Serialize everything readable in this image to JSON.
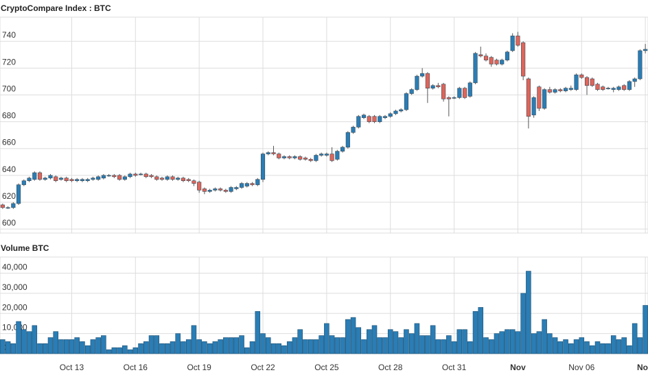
{
  "chart_data": [
    {
      "type": "candlestick",
      "title": "CryptoCompare Index : BTC",
      "up_color": "#2a7db5",
      "down_color": "#e0655a",
      "ylim": [
        597,
        758
      ],
      "yticks": [
        600,
        620,
        640,
        660,
        680,
        700,
        720,
        740
      ],
      "grid": true,
      "open": [
        618,
        616,
        616,
        619,
        633,
        636,
        637,
        642,
        637,
        638,
        639,
        637,
        638,
        637,
        636,
        636,
        636,
        637,
        637,
        638,
        640,
        640,
        640,
        637,
        639,
        641,
        641,
        641,
        640,
        639,
        638,
        637,
        639,
        637,
        638,
        637,
        636,
        635,
        630,
        628,
        629,
        630,
        629,
        628,
        630,
        631,
        632,
        634,
        633,
        637,
        656,
        657,
        656,
        653,
        654,
        653,
        654,
        653,
        652,
        651,
        655,
        655,
        656,
        652,
        658,
        661,
        672,
        676,
        683,
        684,
        684,
        680,
        683,
        684,
        686,
        688,
        689,
        701,
        704,
        714,
        716,
        705,
        707,
        708,
        698,
        698,
        698,
        705,
        699,
        709,
        730,
        729,
        728,
        726,
        723,
        726,
        733,
        744,
        739,
        712,
        685,
        706,
        690,
        704,
        702,
        704,
        703,
        704,
        704,
        715,
        713,
        712,
        708,
        706,
        705,
        704,
        704,
        707,
        704,
        710,
        712,
        733
      ],
      "high": [
        619,
        617,
        620,
        634,
        637,
        639,
        643,
        643,
        639,
        641,
        640,
        639,
        639,
        638,
        638,
        638,
        638,
        639,
        640,
        641,
        641,
        641,
        641,
        640,
        642,
        642,
        642,
        642,
        641,
        640,
        639,
        640,
        640,
        639,
        639,
        638,
        637,
        636,
        631,
        630,
        631,
        631,
        630,
        632,
        632,
        635,
        635,
        635,
        638,
        657,
        658,
        662,
        657,
        655,
        655,
        655,
        655,
        654,
        653,
        656,
        657,
        657,
        661,
        659,
        662,
        673,
        677,
        685,
        686,
        685,
        685,
        685,
        685,
        687,
        689,
        690,
        702,
        705,
        715,
        720,
        717,
        708,
        709,
        709,
        699,
        699,
        706,
        706,
        710,
        732,
        736,
        731,
        729,
        727,
        727,
        733,
        746,
        747,
        740,
        713,
        699,
        707,
        705,
        706,
        705,
        705,
        706,
        707,
        716,
        716,
        714,
        713,
        709,
        707,
        706,
        706,
        707,
        708,
        711,
        713,
        734,
        738
      ],
      "low": [
        615,
        615,
        615,
        618,
        632,
        635,
        636,
        636,
        636,
        637,
        635,
        636,
        635,
        635,
        635,
        635,
        635,
        636,
        636,
        637,
        639,
        638,
        636,
        636,
        638,
        639,
        640,
        638,
        638,
        636,
        636,
        636,
        636,
        636,
        635,
        635,
        632,
        627,
        626,
        627,
        628,
        628,
        627,
        627,
        629,
        630,
        631,
        632,
        632,
        635,
        655,
        655,
        652,
        652,
        652,
        652,
        651,
        651,
        650,
        650,
        654,
        654,
        650,
        651,
        657,
        660,
        671,
        675,
        682,
        679,
        679,
        679,
        682,
        683,
        685,
        687,
        688,
        700,
        703,
        713,
        694,
        704,
        705,
        695,
        684,
        697,
        697,
        697,
        698,
        708,
        728,
        725,
        721,
        722,
        722,
        725,
        732,
        736,
        711,
        675,
        683,
        688,
        689,
        701,
        701,
        702,
        702,
        703,
        703,
        712,
        700,
        706,
        703,
        703,
        704,
        702,
        703,
        703,
        703,
        706,
        711,
        731
      ],
      "close": [
        616,
        616,
        619,
        633,
        636,
        638,
        642,
        637,
        638,
        640,
        636,
        638,
        636,
        636,
        637,
        637,
        637,
        638,
        639,
        640,
        640,
        639,
        637,
        639,
        641,
        640,
        641,
        639,
        639,
        637,
        637,
        639,
        637,
        638,
        636,
        636,
        634,
        629,
        628,
        629,
        630,
        629,
        628,
        631,
        631,
        634,
        634,
        633,
        637,
        656,
        657,
        656,
        653,
        654,
        653,
        654,
        652,
        652,
        651,
        655,
        656,
        656,
        651,
        658,
        661,
        672,
        676,
        684,
        685,
        680,
        680,
        684,
        684,
        686,
        688,
        689,
        701,
        704,
        714,
        716,
        705,
        707,
        706,
        697,
        697,
        698,
        705,
        698,
        709,
        731,
        729,
        726,
        723,
        723,
        726,
        732,
        744,
        737,
        714,
        684,
        698,
        690,
        704,
        702,
        704,
        703,
        705,
        705,
        715,
        713,
        707,
        707,
        704,
        704,
        705,
        705,
        706,
        704,
        710,
        712,
        733,
        734
      ]
    },
    {
      "type": "bar",
      "title": "Volume BTC",
      "color": "#2a7db5",
      "categories": [
        null,
        null,
        null,
        null,
        null,
        null,
        null,
        null,
        null,
        null,
        null,
        null,
        null,
        "Oct 13",
        null,
        null,
        null,
        null,
        null,
        null,
        null,
        null,
        null,
        null,
        null,
        "Oct 16",
        null,
        null,
        null,
        null,
        null,
        null,
        null,
        null,
        null,
        null,
        null,
        "Oct 19",
        null,
        null,
        null,
        null,
        null,
        null,
        null,
        null,
        null,
        null,
        null,
        "Oct 22",
        null,
        null,
        null,
        null,
        null,
        null,
        null,
        null,
        null,
        null,
        null,
        "Oct 25",
        null,
        null,
        null,
        null,
        null,
        null,
        null,
        null,
        null,
        null,
        null,
        "Oct 28",
        null,
        null,
        null,
        null,
        null,
        null,
        null,
        null,
        null,
        null,
        null,
        "Oct 31",
        null,
        null,
        null,
        null,
        null,
        null,
        null,
        null,
        null,
        null,
        null,
        "Nov",
        null,
        null,
        null,
        null,
        null,
        null,
        null,
        null,
        null,
        null,
        null,
        "Nov 06",
        null,
        null,
        null,
        null,
        null,
        null,
        null,
        null,
        null,
        null,
        null,
        "No"
      ],
      "values": [
        7000,
        6000,
        5000,
        16000,
        12000,
        11000,
        14000,
        5000,
        5000,
        8000,
        11000,
        7000,
        7000,
        7000,
        8000,
        6000,
        4000,
        7000,
        8000,
        9000,
        2000,
        3000,
        3000,
        4000,
        2000,
        3000,
        5000,
        6000,
        9000,
        9000,
        5000,
        5000,
        6000,
        10000,
        6000,
        7000,
        14000,
        7000,
        6000,
        5000,
        6000,
        7000,
        8000,
        8000,
        8000,
        9000,
        3000,
        6000,
        21000,
        10000,
        8000,
        5000,
        5000,
        4000,
        6000,
        8000,
        12000,
        7000,
        7000,
        7000,
        9000,
        15000,
        9000,
        8000,
        8000,
        17000,
        18000,
        13000,
        7000,
        12000,
        14000,
        8000,
        8000,
        12000,
        11000,
        8000,
        12000,
        10000,
        15000,
        9000,
        9000,
        14000,
        7000,
        7000,
        9000,
        6000,
        12000,
        12000,
        6000,
        21000,
        23000,
        8000,
        7000,
        10000,
        11000,
        12000,
        12000,
        11000,
        30000,
        41000,
        10000,
        11000,
        17000,
        10000,
        8000,
        6000,
        7000,
        5000,
        7000,
        8000,
        6000,
        4000,
        6000,
        5000,
        5000,
        9000,
        7000,
        8000,
        4000,
        15000,
        8000,
        24000
      ],
      "ylim": [
        0,
        48000
      ],
      "yticks": [
        0,
        {
          "value": 10000,
          "label": "10,000"
        },
        {
          "value": 20000,
          "label": "20,000"
        },
        {
          "value": 30000,
          "label": "30,000"
        },
        {
          "value": 40000,
          "label": "40,000"
        }
      ],
      "grid": true
    }
  ]
}
